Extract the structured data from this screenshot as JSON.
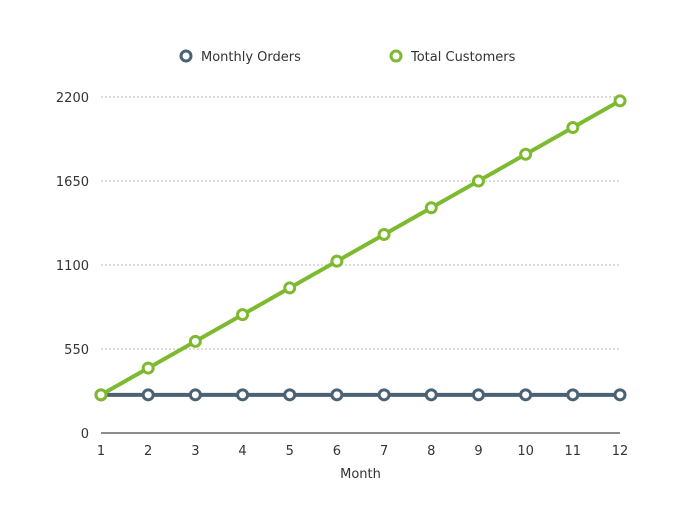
{
  "chart_data": {
    "type": "line",
    "title": "",
    "xlabel": "Month",
    "ylabel": "",
    "x": [
      1,
      2,
      3,
      4,
      5,
      6,
      7,
      8,
      9,
      10,
      11,
      12
    ],
    "ylim": [
      0,
      2200
    ],
    "yticks": [
      0,
      550,
      1100,
      1650,
      2200
    ],
    "grid": "horizontal dotted",
    "legend": "top-center",
    "series": [
      {
        "name": "Monthly Orders",
        "color": "#4a6272",
        "values": [
          250,
          250,
          250,
          250,
          250,
          250,
          250,
          250,
          250,
          250,
          250,
          250
        ]
      },
      {
        "name": "Total Customers",
        "color": "#7dba2f",
        "values": [
          250,
          425,
          600,
          775,
          950,
          1125,
          1300,
          1475,
          1650,
          1825,
          2000,
          2175
        ]
      }
    ]
  }
}
